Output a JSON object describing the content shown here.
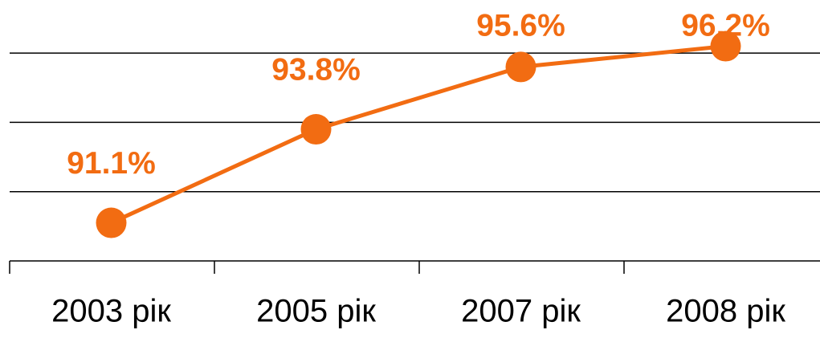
{
  "chart_data": {
    "type": "line",
    "categories": [
      "2003 рік",
      "2005 рік",
      "2007 рік",
      "2008 рік"
    ],
    "values": [
      91.1,
      93.8,
      95.6,
      96.2
    ],
    "value_labels": [
      "91.1%",
      "93.8%",
      "95.6%",
      "96.2%"
    ],
    "color": "#f26c12",
    "ylim": [
      90,
      97
    ],
    "yticks": [
      90,
      92,
      94,
      96
    ],
    "grid": true
  }
}
